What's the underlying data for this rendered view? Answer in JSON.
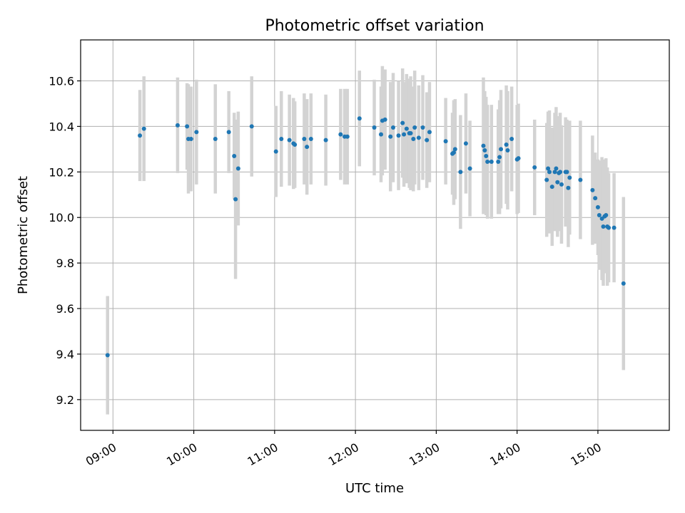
{
  "chart_data": {
    "type": "scatter",
    "title": "Photometric offset variation",
    "xlabel": "UTC time",
    "ylabel": "Photometric offset",
    "xlim": [
      "08:36",
      "15:53"
    ],
    "ylim": [
      9.065,
      10.78
    ],
    "grid": true,
    "x_tick_labels": [
      "09:00",
      "10:00",
      "11:00",
      "12:00",
      "13:00",
      "14:00",
      "15:00"
    ],
    "y_tick_labels": [
      "9.2",
      "9.4",
      "9.6",
      "9.8",
      "10.0",
      "10.2",
      "10.4",
      "10.6"
    ],
    "colors": {
      "point": "#1f77b4",
      "error_bar": "#d3d3d3",
      "grid": "#b0b0b0"
    },
    "series": [
      {
        "x": [
          "08:56",
          "09:20",
          "09:23",
          "09:48",
          "09:55",
          "09:56",
          "09:58",
          "10:02",
          "10:16",
          "10:26",
          "10:30",
          "10:31",
          "10:33",
          "10:43",
          "11:01",
          "11:05",
          "11:11",
          "11:14",
          "11:15",
          "11:22",
          "11:24",
          "11:27",
          "11:38",
          "11:49",
          "11:52",
          "11:54",
          "12:03",
          "12:14",
          "12:19",
          "12:20",
          "12:22",
          "12:26",
          "12:28",
          "12:32",
          "12:35",
          "12:36",
          "12:38",
          "12:40",
          "12:41",
          "12:43",
          "12:44",
          "12:47",
          "12:50",
          "12:53",
          "12:55",
          "13:07",
          "13:12",
          "13:13",
          "13:14",
          "13:18",
          "13:22",
          "13:25",
          "13:35",
          "13:36",
          "13:37",
          "13:38",
          "13:41",
          "13:46",
          "13:47",
          "13:48",
          "13:52",
          "13:53",
          "13:56",
          "14:00",
          "14:01",
          "14:13",
          "14:22",
          "14:23",
          "14:24",
          "14:26",
          "14:28",
          "14:29",
          "14:30",
          "14:31",
          "14:32",
          "14:33",
          "14:36",
          "14:37",
          "14:38",
          "14:39",
          "14:47",
          "14:56",
          "14:58",
          "15:00",
          "15:01",
          "15:03",
          "15:04",
          "15:05",
          "15:06",
          "15:07",
          "15:08",
          "15:12",
          "15:19"
        ],
        "y": [
          9.395,
          10.36,
          10.39,
          10.405,
          10.4,
          10.345,
          10.345,
          10.375,
          10.345,
          10.375,
          10.27,
          10.08,
          10.215,
          10.4,
          10.29,
          10.345,
          10.34,
          10.325,
          10.32,
          10.345,
          10.31,
          10.345,
          10.34,
          10.365,
          10.355,
          10.355,
          10.435,
          10.395,
          10.365,
          10.425,
          10.43,
          10.355,
          10.395,
          10.36,
          10.415,
          10.365,
          10.39,
          10.37,
          10.37,
          10.345,
          10.395,
          10.35,
          10.395,
          10.34,
          10.375,
          10.335,
          10.28,
          10.285,
          10.3,
          10.2,
          10.325,
          10.215,
          10.315,
          10.295,
          10.27,
          10.245,
          10.245,
          10.245,
          10.265,
          10.3,
          10.32,
          10.295,
          10.345,
          10.255,
          10.26,
          10.22,
          10.165,
          10.215,
          10.2,
          10.135,
          10.2,
          10.215,
          10.155,
          10.195,
          10.2,
          10.145,
          10.2,
          10.2,
          10.13,
          10.175,
          10.165,
          10.12,
          10.085,
          10.045,
          10.01,
          9.995,
          9.96,
          10.005,
          10.01,
          9.96,
          9.955,
          9.955,
          9.71
        ],
        "y_err": [
          0.26,
          0.2,
          0.23,
          0.21,
          0.19,
          0.24,
          0.23,
          0.23,
          0.24,
          0.18,
          0.19,
          0.35,
          0.25,
          0.22,
          0.2,
          0.21,
          0.2,
          0.2,
          0.19,
          0.2,
          0.21,
          0.2,
          0.2,
          0.2,
          0.21,
          0.21,
          0.21,
          0.21,
          0.21,
          0.24,
          0.22,
          0.24,
          0.24,
          0.24,
          0.24,
          0.23,
          0.24,
          0.24,
          0.25,
          0.23,
          0.25,
          0.23,
          0.23,
          0.21,
          0.22,
          0.19,
          0.18,
          0.23,
          0.22,
          0.25,
          0.22,
          0.21,
          0.3,
          0.26,
          0.26,
          0.25,
          0.25,
          0.23,
          0.25,
          0.26,
          0.26,
          0.26,
          0.23,
          0.24,
          0.24,
          0.21,
          0.25,
          0.25,
          0.27,
          0.26,
          0.26,
          0.27,
          0.24,
          0.25,
          0.26,
          0.26,
          0.24,
          0.23,
          0.26,
          0.25,
          0.26,
          0.24,
          0.2,
          0.21,
          0.24,
          0.27,
          0.26,
          0.25,
          0.25,
          0.26,
          0.24,
          0.24,
          0.38
        ]
      }
    ]
  }
}
